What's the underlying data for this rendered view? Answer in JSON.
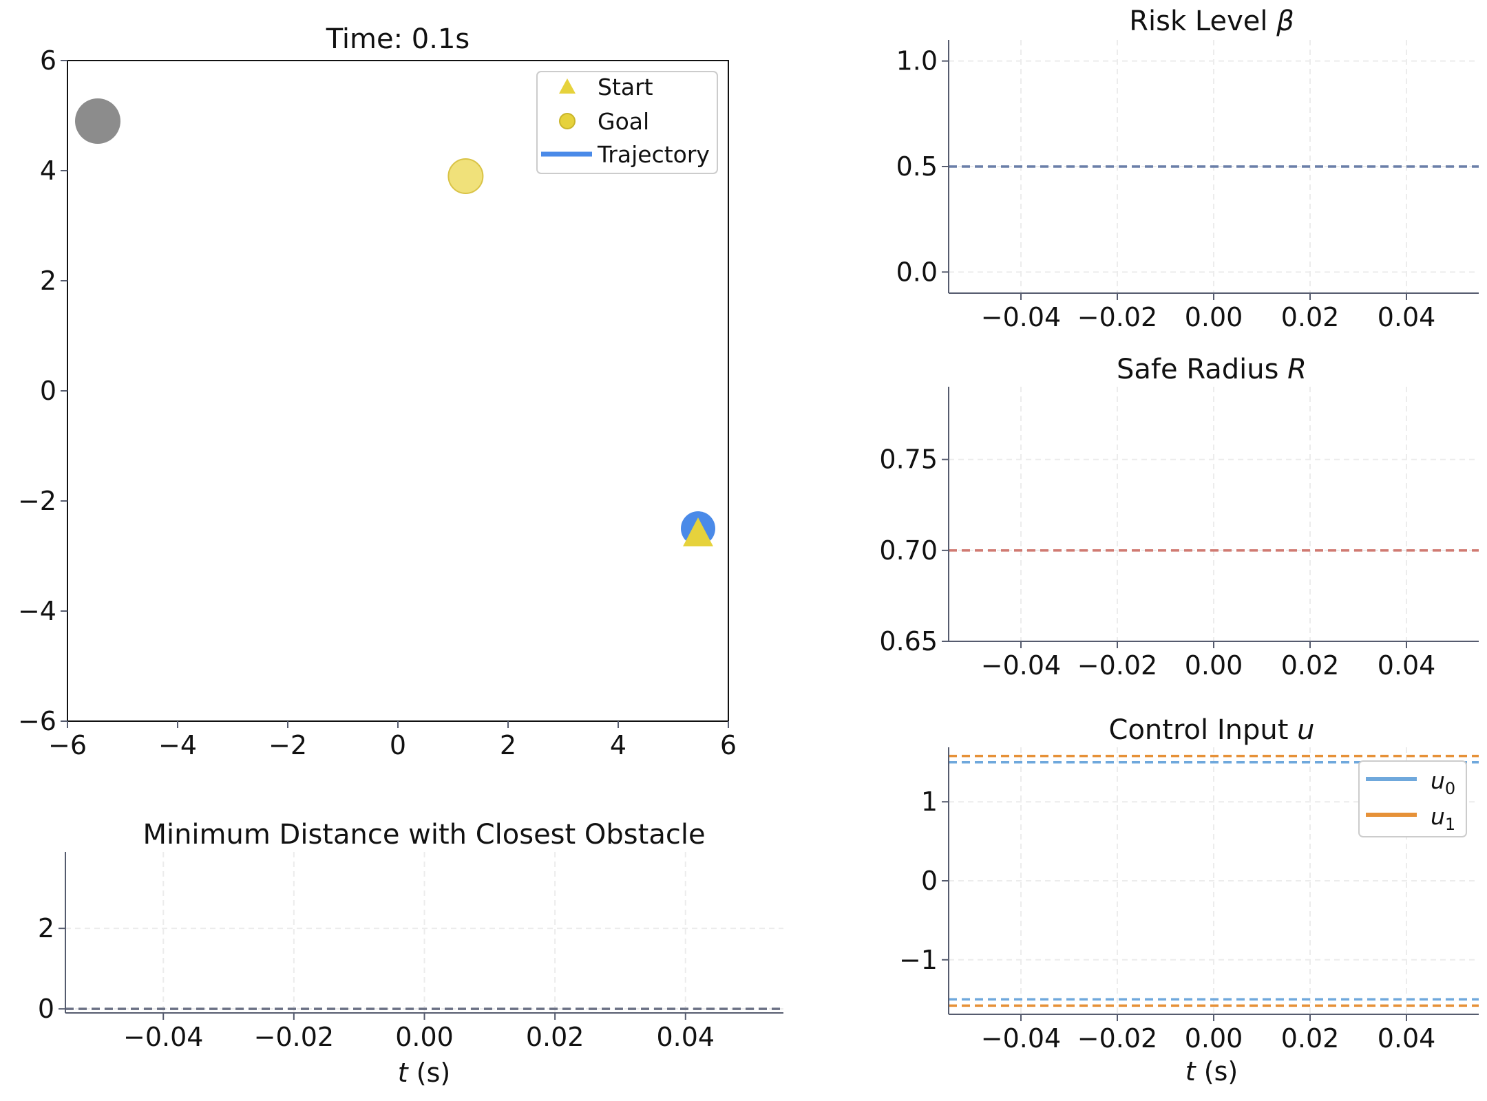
{
  "chart_data": [
    {
      "id": "trajectory",
      "type": "scatter",
      "title": "Time: 0.1s",
      "xlim": [
        -6,
        6
      ],
      "ylim": [
        -6,
        6
      ],
      "xticks": [
        -6,
        -4,
        -2,
        0,
        2,
        4,
        6
      ],
      "yticks": [
        -6,
        -4,
        -2,
        0,
        2,
        4,
        6
      ],
      "xtick_labels": [
        "−6",
        "−4",
        "−2",
        "0",
        "2",
        "4",
        "6"
      ],
      "ytick_labels": [
        "−6",
        "−4",
        "−2",
        "0",
        "2",
        "4",
        "6"
      ],
      "legend": {
        "position": "top-right",
        "entries": [
          "Start",
          "Goal",
          "Trajectory"
        ]
      },
      "points": [
        {
          "role": "obstacle",
          "x": -5.45,
          "y": 4.9,
          "color": "#808080"
        },
        {
          "role": "goal",
          "x": 1.23,
          "y": 3.9,
          "color": "#f0e17a"
        },
        {
          "role": "robot",
          "x": 5.45,
          "y": -2.5,
          "color": "#4a8ae8"
        },
        {
          "role": "start",
          "x": 5.45,
          "y": -2.6,
          "color": "#e6d23c"
        }
      ],
      "colors": {
        "start": "#e6d23c",
        "goal": "#f0e17a",
        "trajectory": "#4a8ae8",
        "obstacle": "#808080"
      }
    },
    {
      "id": "risk",
      "type": "line",
      "title": "Risk Level β",
      "xlim": [
        -0.055,
        0.055
      ],
      "ylim": [
        -0.1,
        1.1
      ],
      "xticks": [
        -0.04,
        -0.02,
        0.0,
        0.02,
        0.04
      ],
      "xtick_labels": [
        "−0.04",
        "−0.02",
        "0.00",
        "0.02",
        "0.04"
      ],
      "yticks": [
        0.0,
        0.5,
        1.0
      ],
      "ytick_labels": [
        "0.0",
        "0.5",
        "1.0"
      ],
      "grid": true,
      "lines": [
        {
          "y": 0.5,
          "color": "#6a7fa8",
          "style": "dashed"
        }
      ]
    },
    {
      "id": "radius",
      "type": "line",
      "title": "Safe Radius R",
      "xlim": [
        -0.055,
        0.055
      ],
      "ylim": [
        0.65,
        0.79
      ],
      "xticks": [
        -0.04,
        -0.02,
        0.0,
        0.02,
        0.04
      ],
      "xtick_labels": [
        "−0.04",
        "−0.02",
        "0.00",
        "0.02",
        "0.04"
      ],
      "yticks": [
        0.65,
        0.7,
        0.75
      ],
      "ytick_labels": [
        "0.65",
        "0.70",
        "0.75"
      ],
      "grid": true,
      "lines": [
        {
          "y": 0.7,
          "color": "#d07a72",
          "style": "dashed"
        }
      ]
    },
    {
      "id": "control",
      "type": "line",
      "title": "Control Input u",
      "xlabel": "t (s)",
      "xlim": [
        -0.055,
        0.055
      ],
      "ylim": [
        -1.69,
        1.69
      ],
      "xticks": [
        -0.04,
        -0.02,
        0.0,
        0.02,
        0.04
      ],
      "xtick_labels": [
        "−0.04",
        "−0.02",
        "0.00",
        "0.02",
        "0.04"
      ],
      "yticks": [
        -1,
        0,
        1
      ],
      "ytick_labels": [
        "−1",
        "0",
        "1"
      ],
      "grid": true,
      "legend": {
        "position": "top-right",
        "entries": [
          "u0",
          "u1"
        ]
      },
      "series": [
        {
          "name": "u0",
          "color": "#6fa8dc",
          "values": []
        },
        {
          "name": "u1",
          "color": "#e69138",
          "values": []
        }
      ],
      "lines": [
        {
          "y": 1.5,
          "color": "#6fa8dc",
          "style": "dashed"
        },
        {
          "y": 1.58,
          "color": "#e69138",
          "style": "dashed"
        },
        {
          "y": -1.5,
          "color": "#6fa8dc",
          "style": "dashed"
        },
        {
          "y": -1.58,
          "color": "#e69138",
          "style": "dashed"
        }
      ]
    },
    {
      "id": "mindist",
      "type": "line",
      "title": "Minimum Distance with Closest Obstacle",
      "xlabel": "t (s)",
      "xlim": [
        -0.055,
        0.055
      ],
      "ylim": [
        -0.1,
        3.9
      ],
      "xticks": [
        -0.04,
        -0.02,
        0.0,
        0.02,
        0.04
      ],
      "xtick_labels": [
        "−0.04",
        "−0.02",
        "0.00",
        "0.02",
        "0.04"
      ],
      "yticks": [
        0,
        2
      ],
      "ytick_labels": [
        "0",
        "2"
      ],
      "grid": true,
      "lines": [
        {
          "y": 0.0,
          "color": "#6b7185",
          "style": "dashed"
        }
      ]
    }
  ]
}
